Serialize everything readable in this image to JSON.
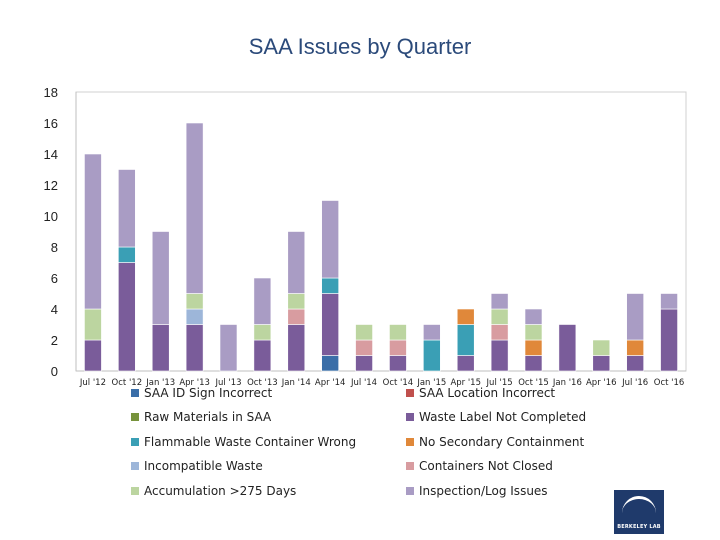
{
  "chart_data": {
    "type": "bar",
    "stacked": true,
    "title": "SAA Issues by Quarter",
    "xlabel": "",
    "ylabel": "",
    "ylim": [
      0,
      18
    ],
    "yticks": [
      0,
      2,
      4,
      6,
      8,
      10,
      12,
      14,
      16,
      18
    ],
    "grid": false,
    "legend_position": "bottom",
    "categories": [
      "Jul '12",
      "Oct '12",
      "Jan '13",
      "Apr '13",
      "Jul '13",
      "Oct '13",
      "Jan '14",
      "Apr '14",
      "Jul '14",
      "Oct '14",
      "Jan '15",
      "Apr '15",
      "Jul '15",
      "Oct '15",
      "Jan '16",
      "Apr '16",
      "Jul '16",
      "Oct '16"
    ],
    "series": [
      {
        "name": "SAA ID Sign Incorrect",
        "color": "#3a6ea8",
        "values": [
          0,
          0,
          0,
          0,
          0,
          0,
          0,
          1,
          0,
          0,
          0,
          0,
          0,
          0,
          0,
          0,
          0,
          0
        ]
      },
      {
        "name": "SAA Location Incorrect",
        "color": "#c0504d",
        "values": [
          0,
          0,
          0,
          0,
          0,
          0,
          0,
          0,
          0,
          0,
          0,
          0,
          0,
          0,
          0,
          0,
          0,
          0
        ]
      },
      {
        "name": "Raw Materials in SAA",
        "color": "#77933c",
        "values": [
          0,
          0,
          0,
          0,
          0,
          0,
          0,
          0,
          0,
          0,
          0,
          0,
          0,
          0,
          0,
          0,
          0,
          0
        ]
      },
      {
        "name": "Waste Label Not Completed",
        "color": "#7a5c9a",
        "values": [
          2,
          7,
          3,
          3,
          0,
          2,
          3,
          4,
          1,
          1,
          0,
          1,
          2,
          1,
          3,
          1,
          1,
          4
        ]
      },
      {
        "name": "Flammable Waste Container Wrong",
        "color": "#3a9fb5",
        "values": [
          0,
          1,
          0,
          0,
          0,
          0,
          0,
          1,
          0,
          0,
          2,
          2,
          0,
          0,
          0,
          0,
          0,
          0
        ]
      },
      {
        "name": "No Secondary Containment",
        "color": "#e0883a",
        "values": [
          0,
          0,
          0,
          0,
          0,
          0,
          0,
          0,
          0,
          0,
          0,
          1,
          0,
          1,
          0,
          0,
          1,
          0
        ]
      },
      {
        "name": "Incompatible Waste",
        "color": "#9db6d9",
        "values": [
          0,
          0,
          0,
          1,
          0,
          0,
          0,
          0,
          0,
          0,
          0,
          0,
          0,
          0,
          0,
          0,
          0,
          0
        ]
      },
      {
        "name": "Containers Not Closed",
        "color": "#d89ca0",
        "values": [
          0,
          0,
          0,
          0,
          0,
          0,
          1,
          0,
          1,
          1,
          0,
          0,
          1,
          0,
          0,
          0,
          0,
          0
        ]
      },
      {
        "name": "Accumulation >275 Days",
        "color": "#bcd5a0",
        "values": [
          2,
          0,
          0,
          1,
          0,
          1,
          1,
          0,
          1,
          1,
          0,
          0,
          1,
          1,
          0,
          1,
          0,
          0
        ]
      },
      {
        "name": "Inspection/Log Issues",
        "color": "#a99cc4",
        "values": [
          10,
          5,
          6,
          11,
          3,
          3,
          4,
          5,
          0,
          0,
          1,
          0,
          1,
          1,
          0,
          0,
          3,
          1
        ]
      }
    ],
    "legend_order": [
      "SAA ID Sign Incorrect",
      "SAA Location Incorrect",
      "Raw Materials in SAA",
      "Waste Label Not Completed",
      "Flammable Waste Container Wrong",
      "No Secondary Containment",
      "Incompatible Waste",
      "Containers Not Closed",
      "Accumulation >275 Days",
      "Inspection/Log Issues"
    ]
  },
  "logo": {
    "text": "BERKELEY LAB"
  }
}
